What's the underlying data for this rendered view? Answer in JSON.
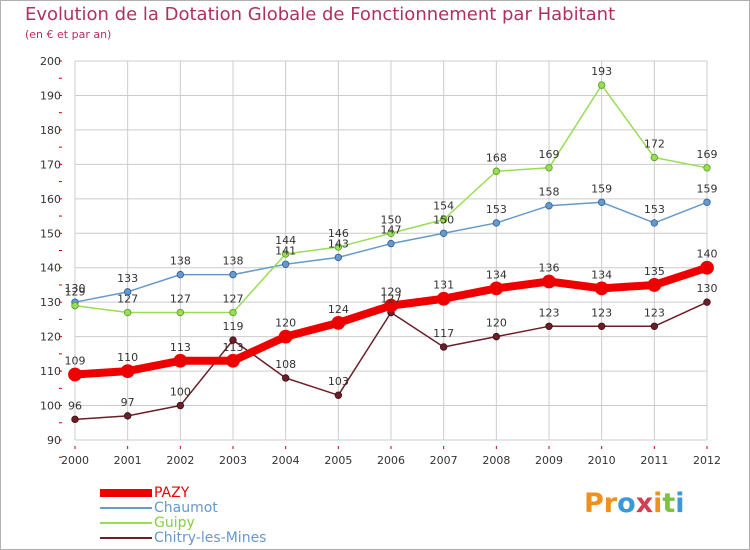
{
  "title": "Evolution de la Dotation Globale de Fonctionnement par Habitant",
  "subtitle": "(en € et par an)",
  "logo": {
    "letters": [
      "P",
      "r",
      "o",
      "x",
      "i",
      "t",
      "i"
    ],
    "colors": [
      "#f0901c",
      "#f0901c",
      "#3a9ad8",
      "#d04050",
      "#f0901c",
      "#7dc242",
      "#3a9ad8"
    ]
  },
  "colors": {
    "pazy": "#ee0000",
    "chaumot": "#6699cc",
    "guipy": "#99dd55",
    "chitry": "#6b1f28",
    "title": "#b03060",
    "grid": "#cccccc"
  },
  "chart_data": {
    "type": "line",
    "title": "Evolution de la Dotation Globale de Fonctionnement par Habitant",
    "subtitle": "(en € et par an)",
    "xlabel": "",
    "ylabel": "",
    "ylim": [
      90,
      200
    ],
    "yticks": [
      90,
      100,
      110,
      120,
      130,
      140,
      150,
      160,
      170,
      180,
      190,
      200
    ],
    "categories": [
      "2000",
      "2001",
      "2002",
      "2003",
      "2004",
      "2005",
      "2006",
      "2007",
      "2008",
      "2009",
      "2010",
      "2011",
      "2012"
    ],
    "grid": true,
    "legend": "bottom-left",
    "series": [
      {
        "name": "PAZY",
        "values": [
          109,
          110,
          113,
          113,
          120,
          124,
          129,
          131,
          134,
          136,
          134,
          135,
          140
        ]
      },
      {
        "name": "Chaumot",
        "values": [
          130,
          133,
          138,
          138,
          141,
          143,
          147,
          150,
          153,
          158,
          159,
          153,
          159
        ]
      },
      {
        "name": "Guipy",
        "values": [
          129,
          127,
          127,
          127,
          144,
          146,
          150,
          154,
          168,
          169,
          193,
          172,
          169
        ]
      },
      {
        "name": "Chitry-les-Mines",
        "values": [
          96,
          97,
          100,
          119,
          108,
          103,
          127,
          117,
          120,
          123,
          123,
          123,
          130
        ]
      }
    ]
  }
}
